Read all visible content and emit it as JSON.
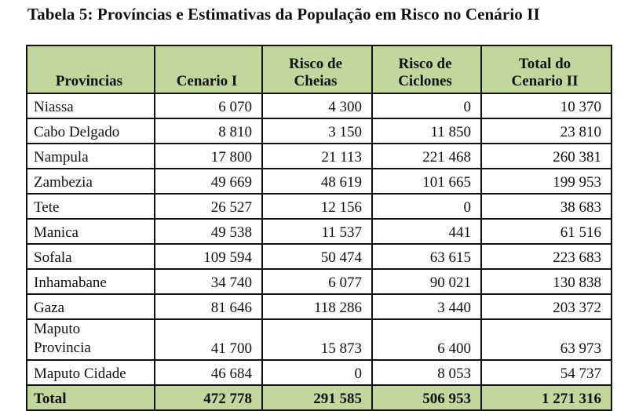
{
  "title": "Tabela 5: Províncias e Estimativas da População em Risco no Cenário II",
  "table": {
    "headers": [
      "Provincias",
      "Cenario I",
      "Risco de Cheias",
      "Risco de Ciclones",
      "Total do Cenario II"
    ],
    "header_lines": [
      [
        "Provincias"
      ],
      [
        "Cenario I"
      ],
      [
        "Risco de",
        "Cheias"
      ],
      [
        "Risco de",
        "Ciclones"
      ],
      [
        "Total do",
        "Cenario II"
      ]
    ],
    "rows": [
      [
        "Niassa",
        "6 070",
        "4 300",
        "0",
        "10 370"
      ],
      [
        "Cabo Delgado",
        "8 810",
        "3 150",
        "11 850",
        "23 810"
      ],
      [
        "Nampula",
        "17 800",
        "21 113",
        "221 468",
        "260 381"
      ],
      [
        "Zambezia",
        "49 669",
        "48 619",
        "101 665",
        "199 953"
      ],
      [
        "Tete",
        "26 527",
        "12 156",
        "0",
        "38 683"
      ],
      [
        "Manica",
        "49 538",
        "11 537",
        "441",
        "61 516"
      ],
      [
        "Sofala",
        "109 594",
        "50 474",
        "63 615",
        "223 683"
      ],
      [
        "Inhamabane",
        "34 740",
        "6 077",
        "90 021",
        "130 838"
      ],
      [
        "Gaza",
        "81 646",
        "118 286",
        "3 440",
        "203 372"
      ],
      [
        "Maputo Provincia",
        "41 700",
        "15 873",
        "6 400",
        "63 973"
      ],
      [
        "Maputo Cidade",
        "46 684",
        "0",
        "8 053",
        "54 737"
      ]
    ],
    "total": [
      "Total",
      "472 778",
      "291 585",
      "506 953",
      "1 271 316"
    ]
  },
  "colors": {
    "header_bg": "#c3d69b",
    "border": "#111111"
  }
}
